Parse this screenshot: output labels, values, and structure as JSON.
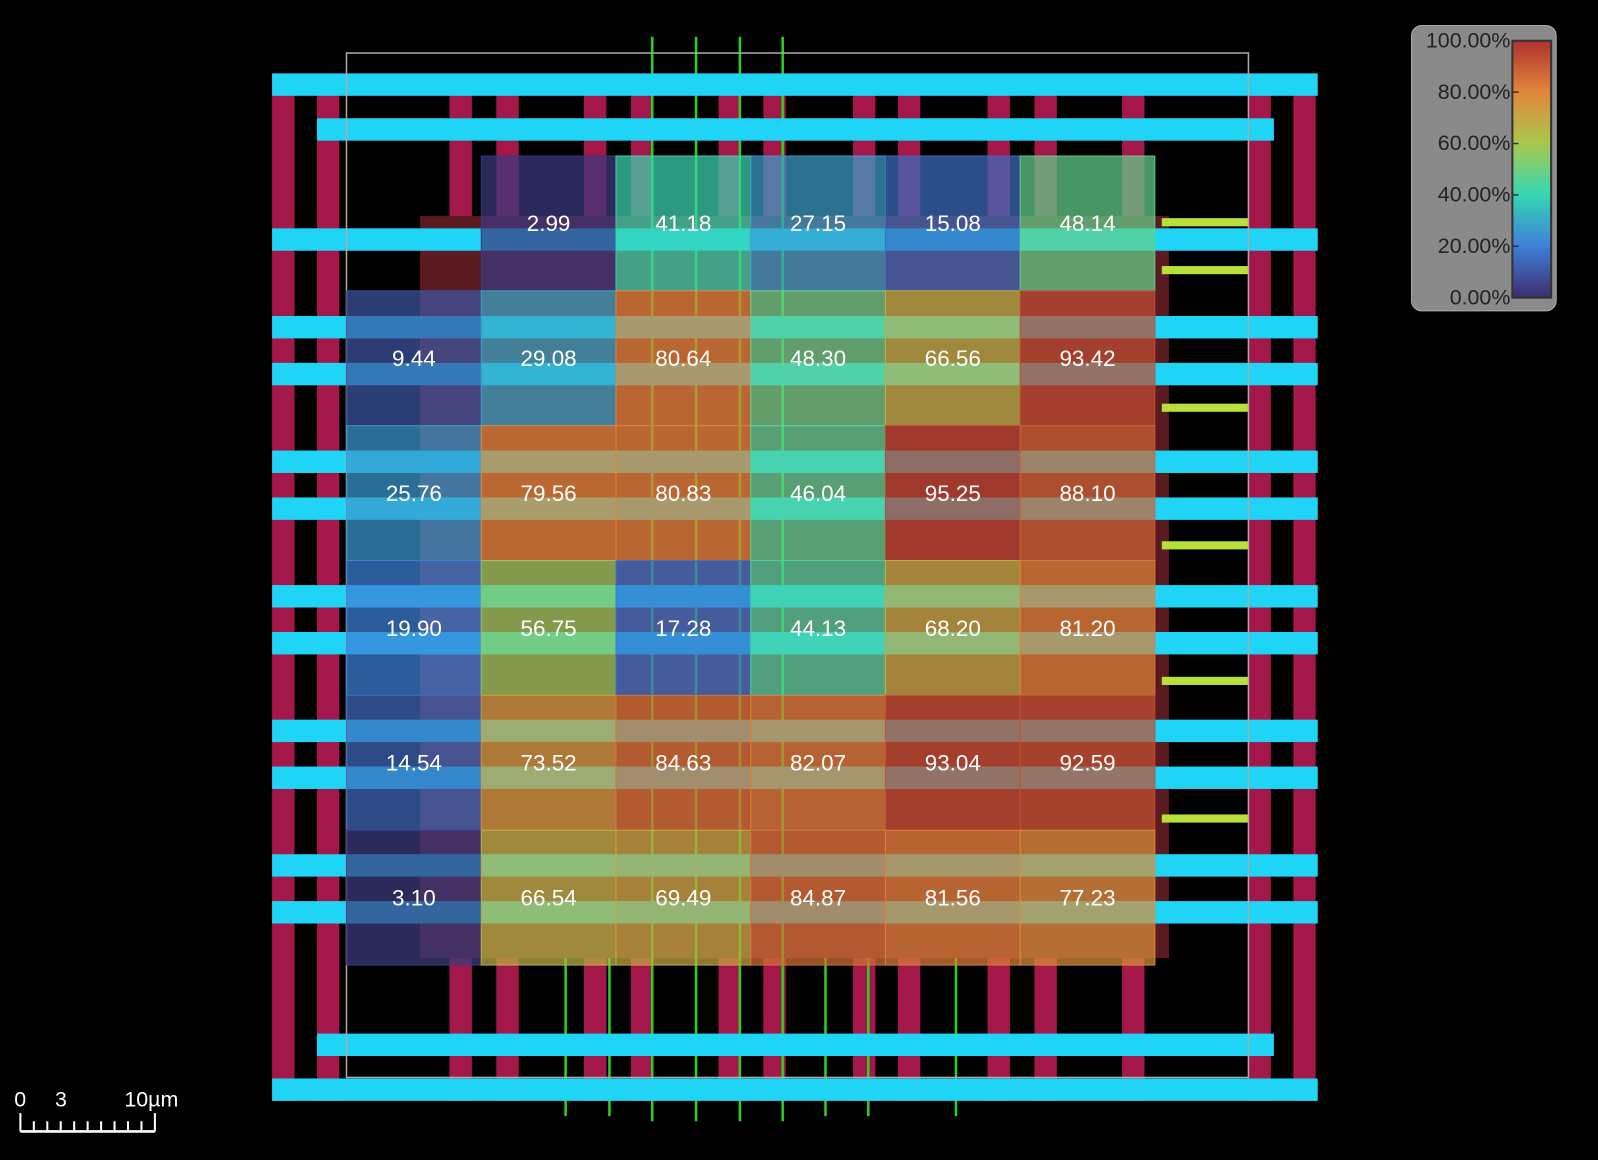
{
  "chart_data": {
    "type": "heatmap",
    "values": [
      [
        null,
        2.99,
        41.18,
        27.15,
        15.08,
        48.14
      ],
      [
        9.44,
        29.08,
        80.64,
        48.3,
        66.56,
        93.42
      ],
      [
        25.76,
        79.56,
        80.83,
        46.04,
        95.25,
        88.1
      ],
      [
        19.9,
        56.75,
        17.28,
        44.13,
        68.2,
        81.2
      ],
      [
        14.54,
        73.52,
        84.63,
        82.07,
        93.04,
        92.59
      ],
      [
        3.1,
        66.54,
        69.49,
        84.87,
        81.56,
        77.23
      ]
    ],
    "value_labels": [
      [
        null,
        "2.99",
        "41.18",
        "27.15",
        "15.08",
        "48.14"
      ],
      [
        "9.44",
        "29.08",
        "80.64",
        "48.30",
        "66.56",
        "93.42"
      ],
      [
        "25.76",
        "79.56",
        "80.83",
        "46.04",
        "95.25",
        "88.10"
      ],
      [
        "19.90",
        "56.75",
        "17.28",
        "44.13",
        "68.20",
        "81.20"
      ],
      [
        "14.54",
        "73.52",
        "84.63",
        "82.07",
        "93.04",
        "92.59"
      ],
      [
        "3.10",
        "66.54",
        "69.49",
        "84.87",
        "81.56",
        "77.23"
      ]
    ],
    "zlim": [
      0,
      100
    ],
    "zticks": [
      {
        "value": 100,
        "label": "100.00%"
      },
      {
        "value": 80,
        "label": "80.00%"
      },
      {
        "value": 60,
        "label": "60.00%"
      },
      {
        "value": 40,
        "label": "40.00%"
      },
      {
        "value": 20,
        "label": "20.00%"
      },
      {
        "value": 0,
        "label": "0.00%"
      }
    ],
    "colormap": [
      "#3b2d6e",
      "#3f7fd8",
      "#35d6b4",
      "#a9c84c",
      "#e0873a",
      "#b0302e"
    ],
    "scale_bar": {
      "labels": [
        "0",
        "3",
        "10µm"
      ]
    }
  }
}
